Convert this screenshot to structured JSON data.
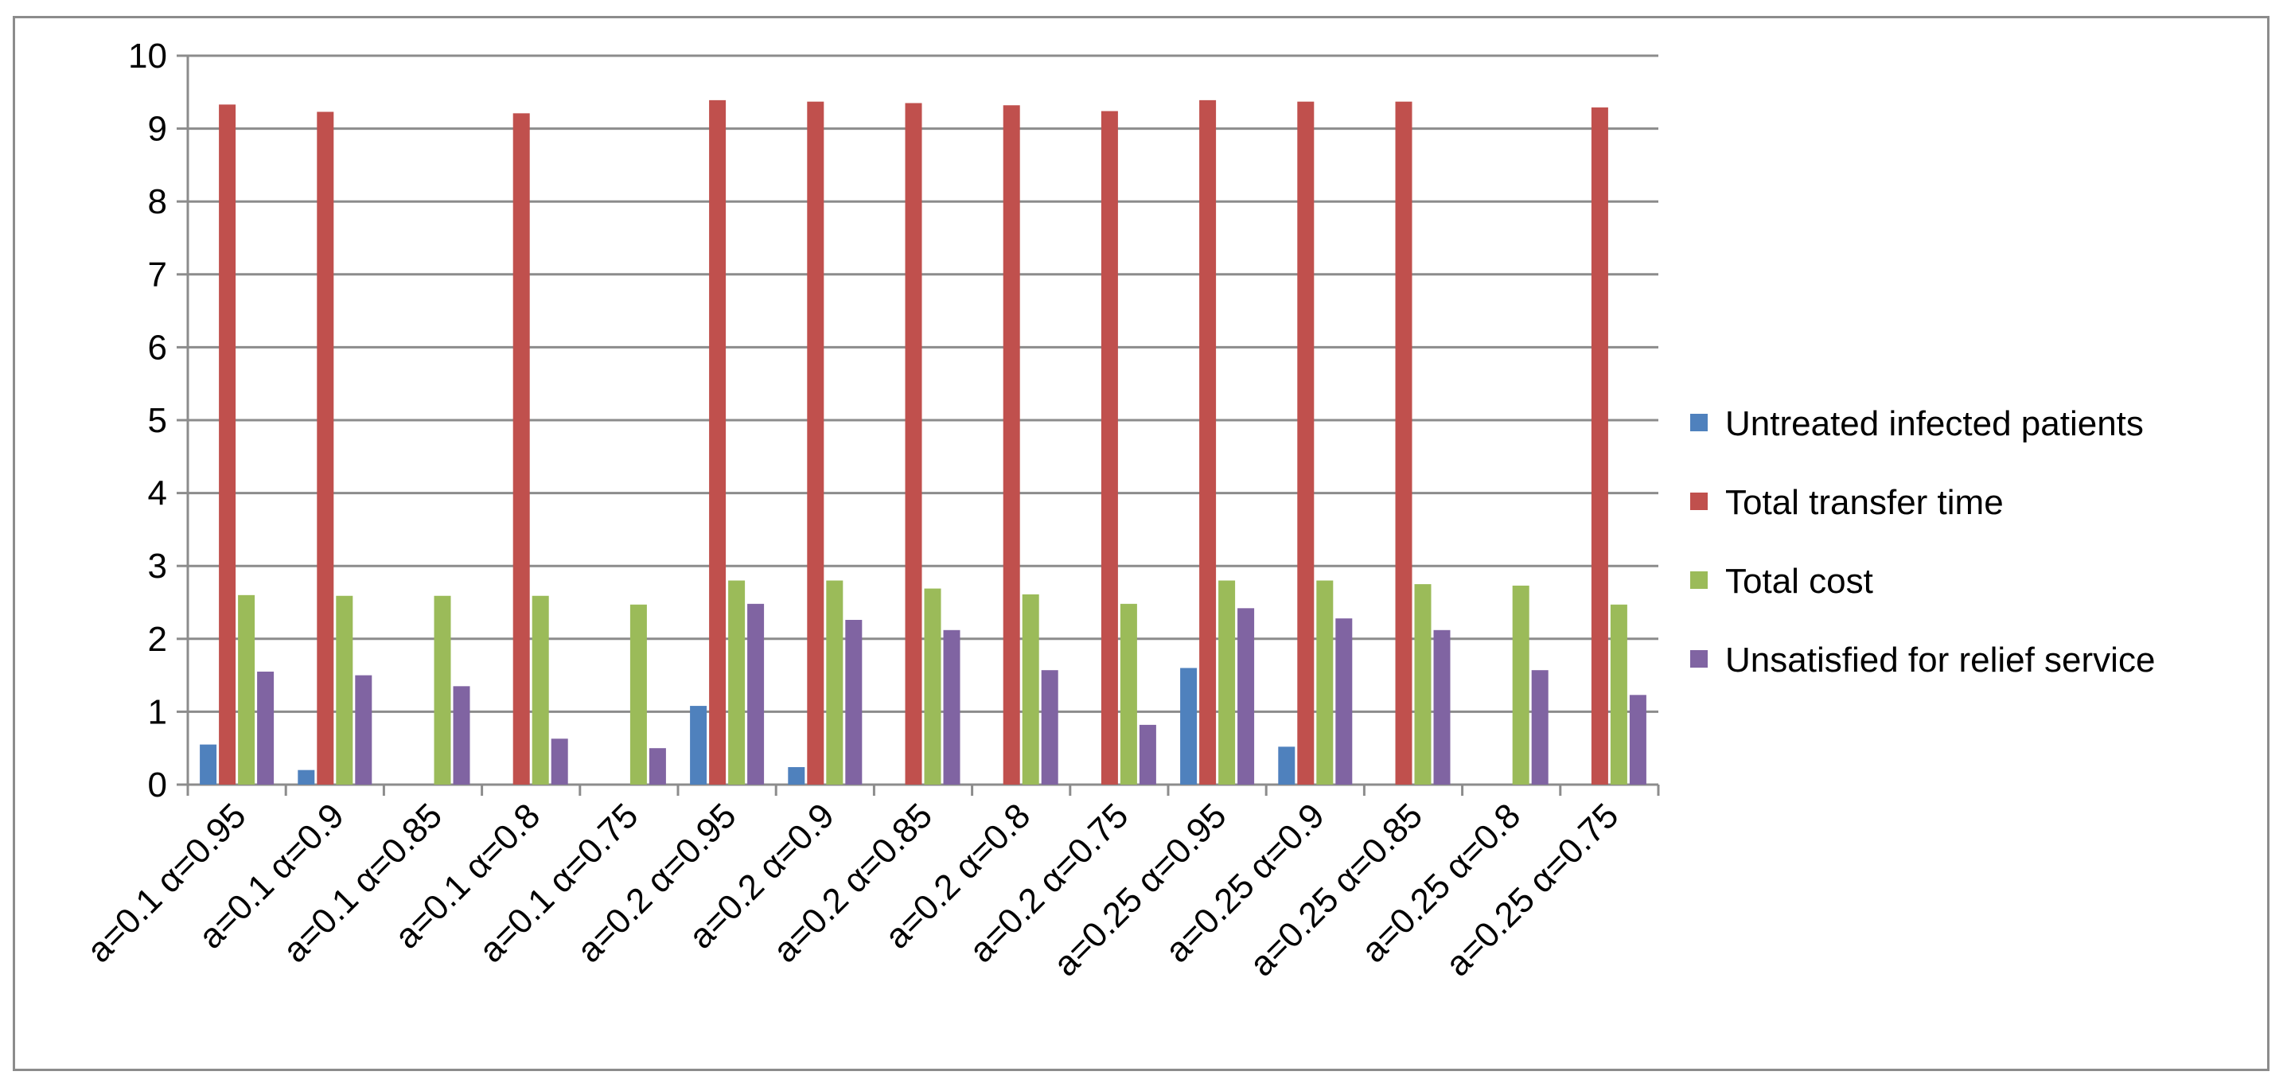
{
  "chart_data": {
    "type": "bar",
    "title": "",
    "xlabel": "",
    "ylabel": "",
    "ylim": [
      0,
      10
    ],
    "yticks": [
      0,
      1,
      2,
      3,
      4,
      5,
      6,
      7,
      8,
      9,
      10
    ],
    "grid": "horizontal",
    "legend_position": "right",
    "categories": [
      "a=0.1 α=0.95",
      "a=0.1 α=0.9",
      "a=0.1 α=0.85",
      "a=0.1 α=0.8",
      "a=0.1 α=0.75",
      "a=0.2 α=0.95",
      "a=0.2 α=0.9",
      "a=0.2 α=0.85",
      "a=0.2 α=0.8",
      "a=0.2 α=0.75",
      "a=0.25 α=0.95",
      "a=0.25 α=0.9",
      "a=0.25 α=0.85",
      "a=0.25 α=0.8",
      "a=0.25 α=0.75"
    ],
    "series": [
      {
        "name": "Untreated infected patients",
        "color": "#4f81bd",
        "values": [
          0.55,
          0.2,
          0,
          0,
          0,
          1.08,
          0.24,
          0,
          0,
          0,
          1.6,
          0.52,
          0,
          0,
          0
        ]
      },
      {
        "name": "Total transfer time",
        "color": "#c0504d",
        "values": [
          9.33,
          9.23,
          0,
          9.21,
          0,
          9.39,
          9.37,
          9.35,
          9.32,
          9.24,
          9.39,
          9.37,
          9.37,
          0,
          9.29
        ]
      },
      {
        "name": "Total cost",
        "color": "#9bbb59",
        "values": [
          2.6,
          2.59,
          2.59,
          2.59,
          2.47,
          2.8,
          2.8,
          2.69,
          2.61,
          2.48,
          2.8,
          2.8,
          2.75,
          2.73,
          2.47
        ]
      },
      {
        "name": "Unsatisfied for relief service",
        "color": "#8064a2",
        "values": [
          1.55,
          1.5,
          1.35,
          0.63,
          0.5,
          2.48,
          2.26,
          2.12,
          1.57,
          0.82,
          2.42,
          2.28,
          2.12,
          1.57,
          1.23
        ]
      }
    ]
  }
}
